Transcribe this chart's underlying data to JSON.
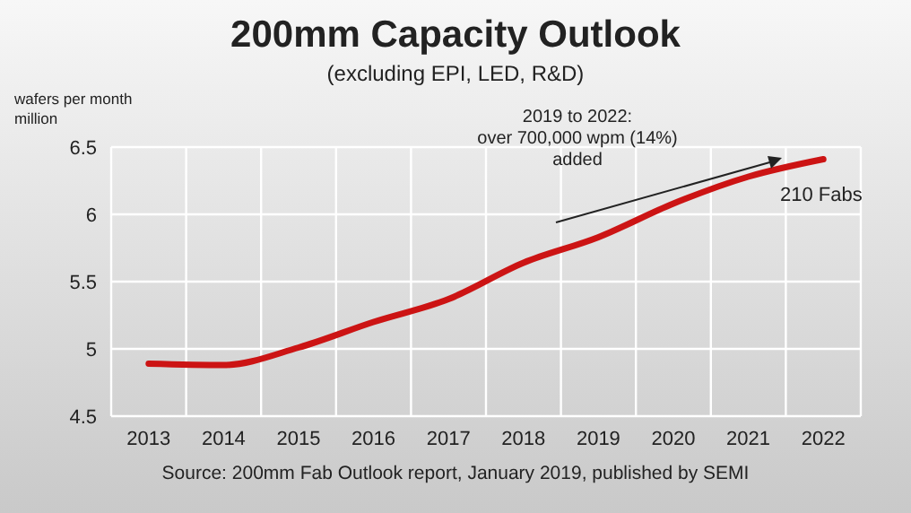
{
  "chart_data": {
    "type": "line",
    "title": "200mm Capacity Outlook",
    "subtitle": "(excluding EPI, LED, R&D)",
    "ylabel": "wafers per month\nmillion",
    "categories": [
      "2013",
      "2014",
      "2015",
      "2016",
      "2017",
      "2018",
      "2019",
      "2020",
      "2021",
      "2022"
    ],
    "series": [
      {
        "color": "#cc1414",
        "values": [
          4.89,
          4.88,
          5.01,
          5.2,
          5.37,
          5.64,
          5.83,
          6.08,
          6.28,
          6.41
        ]
      }
    ],
    "ylim": [
      4.5,
      6.5
    ],
    "yticks": [
      4.5,
      5,
      5.5,
      6,
      6.5
    ],
    "grid": true,
    "legend": false,
    "marker": "none",
    "line_style": "solid",
    "annotations": [
      "2019 to 2022:\nover 700,000 wpm (14%)\nadded",
      "210 Fabs",
      "Source: 200mm Fab Outlook report, January 2019, published by SEMI"
    ]
  }
}
